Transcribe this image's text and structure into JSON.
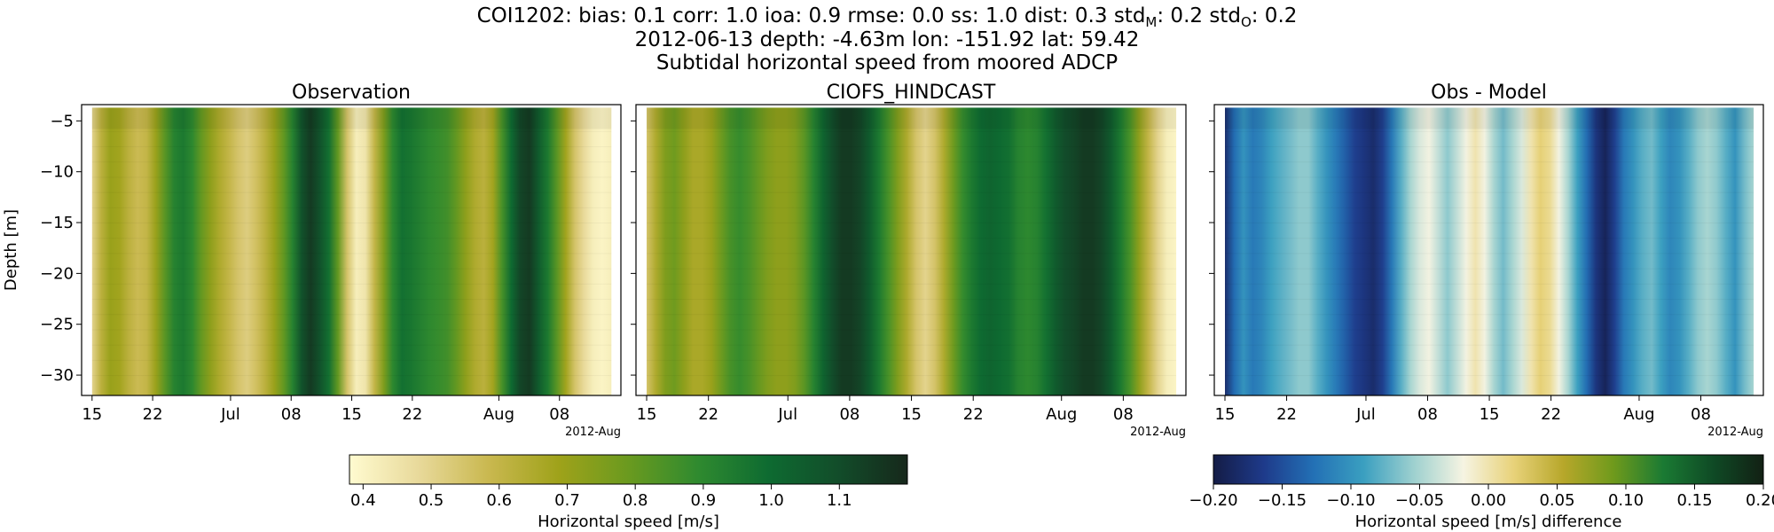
{
  "header": {
    "line1": "COI1202: bias: 0.1  corr: 1.0  ioa: 0.9  rmse: 0.0  ss: 1.0  dist: 0.3  std",
    "std_m_sub": "M",
    "line1_mid": ": 0.2  std",
    "std_o_sub": "O",
    "line1_end": ": 0.2",
    "line2": "2012-06-13 depth: -4.63m lon: -151.92 lat: 59.42",
    "line3": "Subtidal horizontal speed from moored ADCP"
  },
  "colors": {
    "speed_cmap": [
      "#fffbd0",
      "#e8d99a",
      "#c9b84f",
      "#9fa21a",
      "#6a9a1f",
      "#2f8a2f",
      "#0e6b31",
      "#124d2a",
      "#16281b"
    ],
    "diff_cmap": [
      "#141c46",
      "#1e3a8a",
      "#2370b5",
      "#3a9fc0",
      "#9dd0cf",
      "#f6f4e2",
      "#e8d27a",
      "#b7a72a",
      "#6f9a1c",
      "#1a7a33",
      "#0f4a25",
      "#122014"
    ]
  },
  "chart_data": [
    {
      "type": "heatmap",
      "title": "Observation",
      "ylabel": "Depth [m]",
      "ylim": [
        -32,
        -3.4
      ],
      "yticks": [
        -5,
        -10,
        -15,
        -20,
        -25,
        -30
      ],
      "xtick_labels": [
        "15",
        "22",
        "Jul",
        "08",
        "15",
        "22",
        "Aug",
        "08"
      ],
      "x_offset_label": "2012-Aug",
      "x_start": "2012-06-15",
      "x_end": "2012-08-14",
      "series_day_values": [
        0.5,
        0.62,
        0.7,
        0.68,
        0.62,
        0.58,
        0.6,
        0.7,
        0.82,
        0.92,
        0.95,
        0.9,
        0.8,
        0.72,
        0.65,
        0.6,
        0.55,
        0.52,
        0.56,
        0.62,
        0.7,
        0.8,
        0.92,
        1.08,
        1.15,
        1.08,
        0.98,
        0.8,
        0.55,
        0.42,
        0.45,
        0.6,
        0.75,
        0.9,
        0.98,
        0.96,
        0.93,
        0.9,
        0.88,
        0.86,
        0.8,
        0.72,
        0.65,
        0.62,
        0.68,
        0.85,
        1.0,
        1.12,
        1.15,
        1.05,
        0.95,
        0.82,
        0.68,
        0.55,
        0.48,
        0.42,
        0.4,
        0.42
      ]
    },
    {
      "type": "heatmap",
      "title": "CIOFS_HINDCAST",
      "ylim": [
        -32,
        -3.4
      ],
      "yticks": [
        -5,
        -10,
        -15,
        -20,
        -25,
        -30
      ],
      "xtick_labels": [
        "15",
        "22",
        "Jul",
        "08",
        "15",
        "22",
        "Aug",
        "08"
      ],
      "x_offset_label": "2012-Aug",
      "x_start": "2012-06-15",
      "x_end": "2012-08-14",
      "series_day_values": [
        0.55,
        0.65,
        0.75,
        0.78,
        0.72,
        0.66,
        0.66,
        0.7,
        0.78,
        0.85,
        0.88,
        0.85,
        0.8,
        0.75,
        0.72,
        0.72,
        0.75,
        0.82,
        0.92,
        1.02,
        1.1,
        1.15,
        1.15,
        1.12,
        1.05,
        0.95,
        0.85,
        0.75,
        0.65,
        0.55,
        0.5,
        0.55,
        0.65,
        0.78,
        0.88,
        0.95,
        1.0,
        1.02,
        1.0,
        0.98,
        0.92,
        0.9,
        0.92,
        0.98,
        1.05,
        1.1,
        1.12,
        1.15,
        1.15,
        1.12,
        1.05,
        0.95,
        0.85,
        0.72,
        0.6,
        0.5,
        0.42,
        0.4
      ]
    },
    {
      "type": "heatmap",
      "title": "Obs - Model",
      "ylim": [
        -32,
        -3.4
      ],
      "yticks": [
        -5,
        -10,
        -15,
        -20,
        -25,
        -30
      ],
      "xtick_labels": [
        "15",
        "22",
        "Jul",
        "08",
        "15",
        "22",
        "Aug",
        "08"
      ],
      "x_offset_label": "2012-Aug",
      "x_start": "2012-06-15",
      "x_end": "2012-08-14",
      "series_day_values": [
        -0.18,
        -0.13,
        -0.1,
        -0.12,
        -0.11,
        -0.09,
        -0.08,
        -0.07,
        -0.06,
        -0.06,
        -0.08,
        -0.1,
        -0.12,
        -0.14,
        -0.16,
        -0.17,
        -0.18,
        -0.16,
        -0.12,
        -0.08,
        -0.05,
        -0.03,
        -0.02,
        -0.04,
        -0.06,
        -0.04,
        -0.02,
        0.0,
        -0.02,
        -0.05,
        -0.07,
        -0.05,
        -0.03,
        0.0,
        0.02,
        0.01,
        -0.02,
        -0.05,
        -0.09,
        -0.13,
        -0.17,
        -0.19,
        -0.16,
        -0.12,
        -0.1,
        -0.08,
        -0.07,
        -0.09,
        -0.11,
        -0.1,
        -0.08,
        -0.06,
        -0.05,
        -0.06,
        -0.08,
        -0.1,
        -0.07,
        -0.05
      ]
    }
  ],
  "colorbars": [
    {
      "label": "Horizontal speed [m/s]",
      "range": [
        0.38,
        1.2
      ],
      "ticks": [
        "0.4",
        "0.5",
        "0.6",
        "0.7",
        "0.8",
        "0.9",
        "1.0",
        "1.1"
      ]
    },
    {
      "label": "Horizontal speed [m/s] difference",
      "range": [
        -0.2,
        0.2
      ],
      "ticks": [
        "−0.20",
        "−0.15",
        "−0.10",
        "−0.05",
        "0.00",
        "0.05",
        "0.10",
        "0.15",
        "0.20"
      ]
    }
  ]
}
